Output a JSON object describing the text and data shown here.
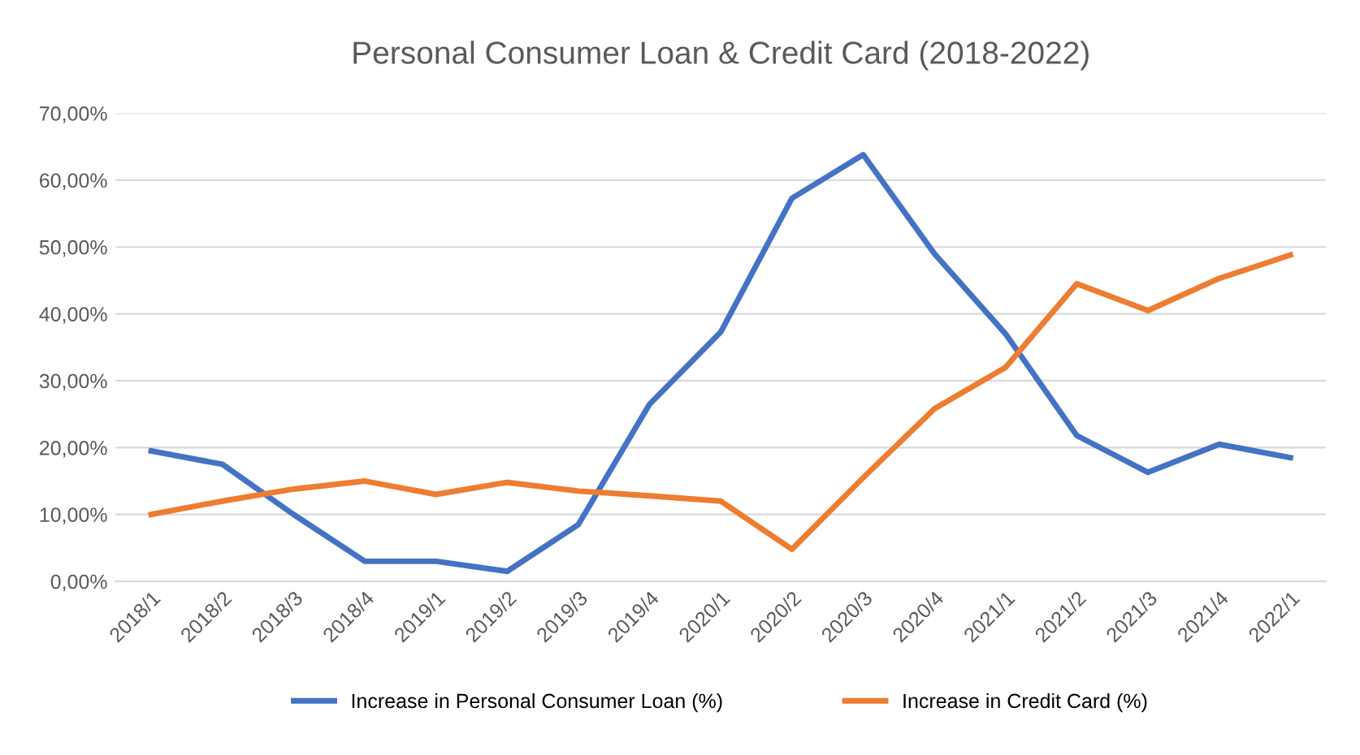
{
  "chart_data": {
    "type": "line",
    "title": "Personal Consumer Loan & Credit Card (2018-2022)",
    "categories": [
      "2018/1",
      "2018/2",
      "2018/3",
      "2018/4",
      "2019/1",
      "2019/2",
      "2019/3",
      "2019/4",
      "2020/1",
      "2020/2",
      "2020/3",
      "2020/4",
      "2021/1",
      "2021/2",
      "2021/3",
      "2021/4",
      "2022/1"
    ],
    "series": [
      {
        "name": "Increase in Personal Consumer Loan (%)",
        "color": "#4472c4",
        "values": [
          19.5,
          17.5,
          10,
          3,
          3,
          1.5,
          8.5,
          26.5,
          37.3,
          57.3,
          63.8,
          49,
          37,
          21.8,
          16.3,
          20.5,
          18.5
        ]
      },
      {
        "name": "Increase in Credit Card (%)",
        "color": "#ed7d31",
        "values": [
          10,
          12,
          13.8,
          15,
          13,
          14.8,
          13.5,
          12.8,
          12,
          4.8,
          15.5,
          25.8,
          32,
          44.5,
          40.5,
          45.3,
          48.8
        ]
      }
    ],
    "ylim": [
      0,
      70
    ],
    "yticks": [
      {
        "value": 0,
        "label": "0,00%"
      },
      {
        "value": 10,
        "label": "10,00%"
      },
      {
        "value": 20,
        "label": "20,00%"
      },
      {
        "value": 30,
        "label": "30,00%"
      },
      {
        "value": 40,
        "label": "40,00%"
      },
      {
        "value": 50,
        "label": "50,00%"
      },
      {
        "value": 60,
        "label": "60,00%"
      },
      {
        "value": 70,
        "label": "70,00%"
      }
    ],
    "grid": "y",
    "legend": "bottom",
    "marker": "none",
    "line_style": "solid"
  }
}
